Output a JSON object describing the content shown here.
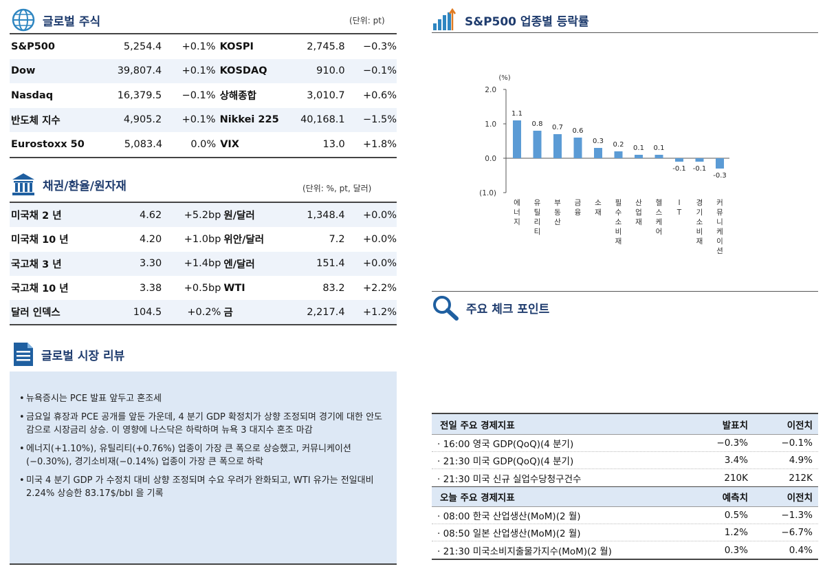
{
  "global_equity": {
    "title": "글로벌 주식",
    "unit": "(단위: pt)",
    "rows": [
      {
        "name1": "S&P500",
        "val1": "5,254.4",
        "chg1": "+0.1%",
        "name2": "KOSPI",
        "val2": "2,745.8",
        "chg2": "−0.3%"
      },
      {
        "name1": "Dow",
        "val1": "39,807.4",
        "chg1": "+0.1%",
        "name2": "KOSDAQ",
        "val2": "910.0",
        "chg2": "−0.1%"
      },
      {
        "name1": "Nasdaq",
        "val1": "16,379.5",
        "chg1": "−0.1%",
        "name2": "상해종합",
        "val2": "3,010.7",
        "chg2": "+0.6%"
      },
      {
        "name1": "반도체 지수",
        "val1": "4,905.2",
        "chg1": "+0.1%",
        "name2": "Nikkei 225",
        "val2": "40,168.1",
        "chg2": "−1.5%"
      },
      {
        "name1": "Eurostoxx 50",
        "val1": "5,083.4",
        "chg1": "0.0%",
        "name2": "VIX",
        "val2": "13.0",
        "chg2": "+1.8%"
      }
    ]
  },
  "bonds_fx": {
    "title": "채권/환율/원자재",
    "unit": "(단위: %, pt, 달러)",
    "rows": [
      {
        "name1": "미국채 2 년",
        "val1": "4.62",
        "chg1": "+5.2bp",
        "name2": "원/달러",
        "val2": "1,348.4",
        "chg2": "+0.0%"
      },
      {
        "name1": "미국채 10 년",
        "val1": "4.20",
        "chg1": "+1.0bp",
        "name2": "위안/달러",
        "val2": "7.2",
        "chg2": "+0.0%"
      },
      {
        "name1": "국고채 3 년",
        "val1": "3.30",
        "chg1": "+1.4bp",
        "name2": "엔/달러",
        "val2": "151.4",
        "chg2": "+0.0%"
      },
      {
        "name1": "국고채 10 년",
        "val1": "3.38",
        "chg1": "+0.5bp",
        "name2": "WTI",
        "val2": "83.2",
        "chg2": "+2.2%"
      },
      {
        "name1": "달러 인덱스",
        "val1": "104.5",
        "chg1": "+0.2%",
        "name2": "금",
        "val2": "2,217.4",
        "chg2": "+1.2%"
      }
    ]
  },
  "review": {
    "title": "글로벌 시장 리뷰",
    "bullets": [
      "뉴욕증시는 PCE 발표 앞두고 혼조세",
      "금요일 휴장과 PCE 공개를 앞둔 가운데, 4 분기 GDP 확정치가 상향 조정되며 경기에 대한 안도감으로 시장금리 상승. 이 영향에 나스닥은 하락하며 뉴욕 3 대지수 혼조 마감",
      "에너지(+1.10%), 유틸리티(+0.76%) 업종이 가장 큰 폭으로 상승했고, 커뮤니케이션(−0.30%), 경기소비재(−0.14%) 업종이 가장 큰 폭으로 하락",
      "미국 4 분기 GDP 가 수정치 대비 상향 조정되며 수요 우려가 완화되고, WTI 유가는 전일대비 2.24% 상승한 83.17$/bbl 을 기록"
    ]
  },
  "chart_section": {
    "title": "S&P500 업종별 등락률"
  },
  "chart_data": {
    "type": "bar",
    "ylabel": "(%)",
    "ylim": [
      -1.0,
      2.0
    ],
    "yticks": [
      "2.0",
      "1.0",
      "0.0",
      "(1.0)"
    ],
    "categories": [
      "에너지",
      "유틸리티",
      "부동산",
      "금융",
      "소재",
      "필수소비재",
      "산업재",
      "헬스케어",
      "IT",
      "경기소비재",
      "커뮤니케이션"
    ],
    "values": [
      1.1,
      0.8,
      0.7,
      0.6,
      0.3,
      0.2,
      0.1,
      0.1,
      -0.1,
      -0.1,
      -0.3
    ],
    "value_labels": [
      "1.1",
      "0.8",
      "0.7",
      "0.6",
      "0.3",
      "0.2",
      "0.1",
      "0.1",
      "-0.1",
      "-0.1",
      "-0.3"
    ],
    "color": "#5b9bd5"
  },
  "check_points": {
    "title": "주요 체크 포인트"
  },
  "econ": {
    "prev_header": {
      "title": "전일 주요 경제지표",
      "actual": "발표치",
      "prior": "이전치"
    },
    "prev_rows": [
      {
        "event": "16:00 영국 GDP(QoQ)(4 분기)",
        "actual": "−0.3%",
        "prior": "−0.1%"
      },
      {
        "event": "21:30 미국 GDP(QoQ)(4 분기)",
        "actual": "3.4%",
        "prior": "4.9%"
      },
      {
        "event": "21:30 미국 신규 실업수당청구건수",
        "actual": "210K",
        "prior": "212K"
      }
    ],
    "today_header": {
      "title": "오늘 주요 경제지표",
      "actual": "예측치",
      "prior": "이전치"
    },
    "today_rows": [
      {
        "event": "08:00 한국 산업생산(MoM)(2 월)",
        "actual": "0.5%",
        "prior": "−1.3%"
      },
      {
        "event": "08:50 일본 산업생산(MoM)(2 월)",
        "actual": "1.2%",
        "prior": "−6.7%"
      },
      {
        "event": "21:30 미국소비지출물가지수(MoM)(2 월)",
        "actual": "0.3%",
        "prior": "0.4%"
      }
    ]
  },
  "colors": {
    "title": "#1f3c6e",
    "shade": "#eef3fa",
    "review_bg": "#dde8f5",
    "bar": "#5b9bd5"
  }
}
